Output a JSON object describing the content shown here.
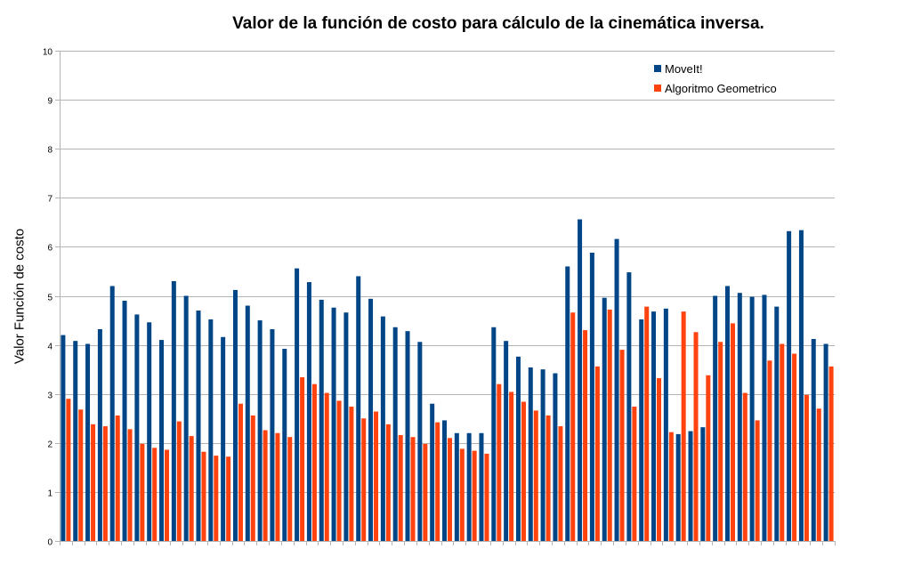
{
  "chart_data": {
    "type": "bar",
    "title": "Valor de la función de costo para cálculo de la cinemática inversa.",
    "xlabel": "",
    "ylabel": "Valor Función de costo",
    "ylim": [
      0,
      10
    ],
    "yticks": [
      "0",
      "1",
      "2",
      "3",
      "4",
      "5",
      "6",
      "7",
      "8",
      "9",
      "10"
    ],
    "grid": true,
    "legend_position": "top-right",
    "series": [
      {
        "name": "MoveIt!",
        "color": "#004586",
        "values": [
          4.2,
          4.08,
          4.02,
          4.32,
          5.2,
          4.9,
          4.62,
          4.46,
          4.1,
          5.3,
          5.0,
          4.7,
          4.52,
          4.16,
          5.12,
          4.8,
          4.5,
          4.32,
          3.92,
          5.56,
          5.28,
          4.92,
          4.76,
          4.66,
          5.4,
          4.94,
          4.58,
          4.36,
          4.28,
          4.06,
          2.8,
          2.46,
          2.2,
          2.2,
          2.2,
          4.36,
          4.08,
          3.76,
          3.54,
          3.5,
          3.42,
          5.6,
          6.56,
          5.88,
          4.96,
          6.16,
          5.48,
          4.52,
          4.68,
          4.74,
          2.18,
          2.24,
          2.32,
          5.0,
          5.2,
          5.06,
          4.98,
          5.02,
          4.78,
          6.32,
          6.34,
          4.12,
          4.02
        ]
      },
      {
        "name": "Algoritmo Geometrico",
        "color": "#ff420e",
        "values": [
          2.9,
          2.68,
          2.38,
          2.34,
          2.56,
          2.28,
          1.98,
          1.9,
          1.86,
          2.44,
          2.14,
          1.82,
          1.74,
          1.72,
          2.8,
          2.56,
          2.26,
          2.2,
          2.12,
          3.34,
          3.2,
          3.02,
          2.86,
          2.74,
          2.5,
          2.64,
          2.38,
          2.16,
          2.12,
          1.98,
          2.42,
          2.1,
          1.88,
          1.84,
          1.78,
          3.2,
          3.04,
          2.84,
          2.66,
          2.56,
          2.34,
          4.66,
          4.3,
          3.56,
          4.72,
          3.9,
          2.74,
          4.78,
          3.32,
          2.22,
          4.68,
          4.26,
          3.38,
          4.06,
          4.44,
          3.02,
          2.46,
          3.68,
          4.02,
          3.82,
          2.98,
          2.7,
          3.56
        ]
      }
    ]
  }
}
